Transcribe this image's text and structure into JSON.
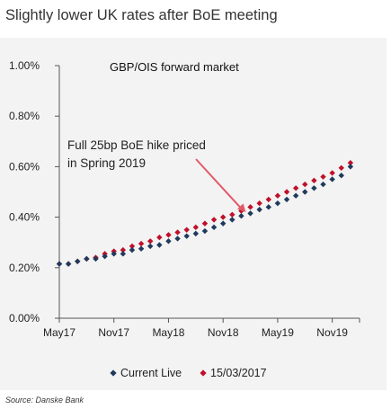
{
  "page": {
    "title": "Slightly lower UK rates after BoE meeting",
    "source": "Source: Danske Bank"
  },
  "colors": {
    "panel_bg": "#f3f3f3",
    "series_current": "#1f3a5c",
    "series_prev": "#c0102a",
    "arrow": "#e05a6a"
  },
  "chart_data": {
    "type": "scatter",
    "title": "GBP/OIS forward market",
    "xlabel": "",
    "ylabel": "",
    "x_ticks": [
      "May17",
      "Nov17",
      "May18",
      "Nov18",
      "May19",
      "Nov19"
    ],
    "y_ticks": [
      "0.00%",
      "0.20%",
      "0.40%",
      "0.60%",
      "0.80%",
      "1.00%"
    ],
    "ylim": [
      0,
      1.0
    ],
    "xlim_months": [
      0,
      33
    ],
    "grid": false,
    "legend_position": "bottom",
    "annotation": {
      "lines": [
        "Full 25bp BoE hike priced",
        "in Spring 2019"
      ],
      "arrow_target_month": 20.5,
      "arrow_target_value": 0.42
    },
    "series": [
      {
        "name": "Current Live",
        "marker": "diamond",
        "month": [
          0,
          1,
          2,
          3,
          4,
          5,
          6,
          7,
          8,
          9,
          10,
          11,
          12,
          13,
          14,
          15,
          16,
          17,
          18,
          19,
          20,
          21,
          22,
          23,
          24,
          25,
          26,
          27,
          28,
          29,
          30,
          31,
          32
        ],
        "values": [
          0.215,
          0.215,
          0.225,
          0.235,
          0.235,
          0.245,
          0.255,
          0.255,
          0.27,
          0.275,
          0.285,
          0.29,
          0.305,
          0.315,
          0.325,
          0.335,
          0.345,
          0.36,
          0.375,
          0.39,
          0.405,
          0.415,
          0.43,
          0.44,
          0.455,
          0.47,
          0.485,
          0.5,
          0.515,
          0.53,
          0.55,
          0.565,
          0.6
        ]
      },
      {
        "name": "15/03/2017",
        "marker": "diamond",
        "month": [
          0,
          1,
          2,
          3,
          4,
          5,
          6,
          7,
          8,
          9,
          10,
          11,
          12,
          13,
          14,
          15,
          16,
          17,
          18,
          19,
          20,
          21,
          22,
          23,
          24,
          25,
          26,
          27,
          28,
          29,
          30,
          31,
          32
        ],
        "values": [
          0.215,
          0.215,
          0.225,
          0.235,
          0.24,
          0.255,
          0.265,
          0.27,
          0.285,
          0.295,
          0.305,
          0.32,
          0.33,
          0.34,
          0.35,
          0.36,
          0.375,
          0.39,
          0.4,
          0.41,
          0.425,
          0.44,
          0.455,
          0.47,
          0.485,
          0.5,
          0.515,
          0.53,
          0.545,
          0.56,
          0.575,
          0.595,
          0.615
        ]
      }
    ]
  }
}
